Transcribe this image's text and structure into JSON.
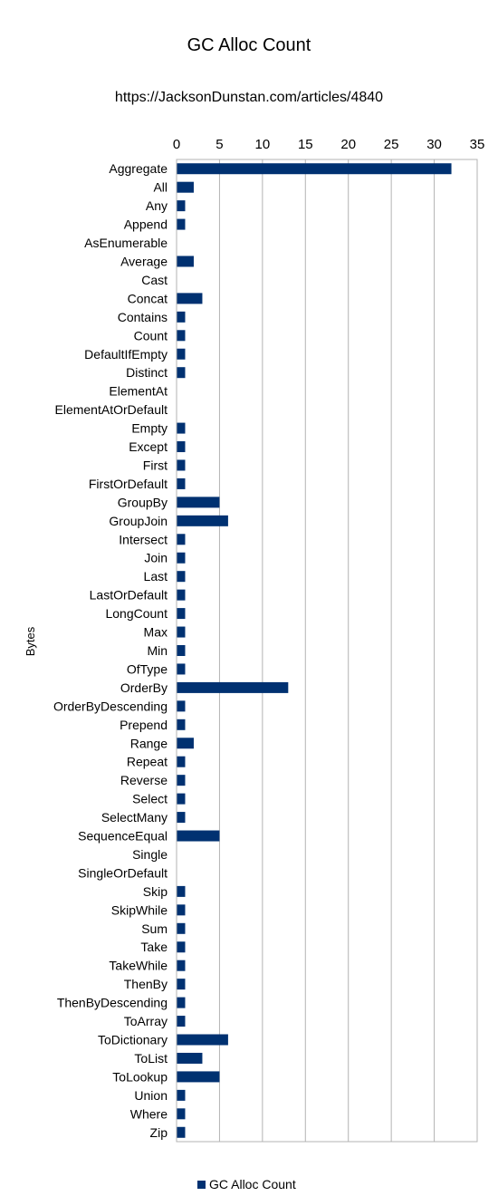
{
  "chart_data": {
    "type": "bar",
    "orientation": "horizontal",
    "title": "GC Alloc Count",
    "subtitle": "https://JacksonDunstan.com/articles/4840",
    "xlabel": "",
    "ylabel": "Bytes",
    "xlim": [
      0,
      35
    ],
    "ticks": [
      0,
      5,
      10,
      15,
      20,
      25,
      30,
      35
    ],
    "grid": true,
    "legend_position": "bottom",
    "bar_color": "#003171",
    "categories": [
      "Aggregate",
      "All",
      "Any",
      "Append",
      "AsEnumerable",
      "Average",
      "Cast",
      "Concat",
      "Contains",
      "Count",
      "DefaultIfEmpty",
      "Distinct",
      "ElementAt",
      "ElementAtOrDefault",
      "Empty",
      "Except",
      "First",
      "FirstOrDefault",
      "GroupBy",
      "GroupJoin",
      "Intersect",
      "Join",
      "Last",
      "LastOrDefault",
      "LongCount",
      "Max",
      "Min",
      "OfType",
      "OrderBy",
      "OrderByDescending",
      "Prepend",
      "Range",
      "Repeat",
      "Reverse",
      "Select",
      "SelectMany",
      "SequenceEqual",
      "Single",
      "SingleOrDefault",
      "Skip",
      "SkipWhile",
      "Sum",
      "Take",
      "TakeWhile",
      "ThenBy",
      "ThenByDescending",
      "ToArray",
      "ToDictionary",
      "ToList",
      "ToLookup",
      "Union",
      "Where",
      "Zip"
    ],
    "series": [
      {
        "name": "GC Alloc Count",
        "values": [
          32,
          2,
          1,
          1,
          0,
          2,
          0,
          3,
          1,
          1,
          1,
          1,
          0,
          0,
          1,
          1,
          1,
          1,
          5,
          6,
          1,
          1,
          1,
          1,
          1,
          1,
          1,
          1,
          13,
          1,
          1,
          2,
          1,
          1,
          1,
          1,
          5,
          0,
          0,
          1,
          1,
          1,
          1,
          1,
          1,
          1,
          1,
          6,
          3,
          5,
          1,
          1,
          1
        ]
      }
    ]
  }
}
